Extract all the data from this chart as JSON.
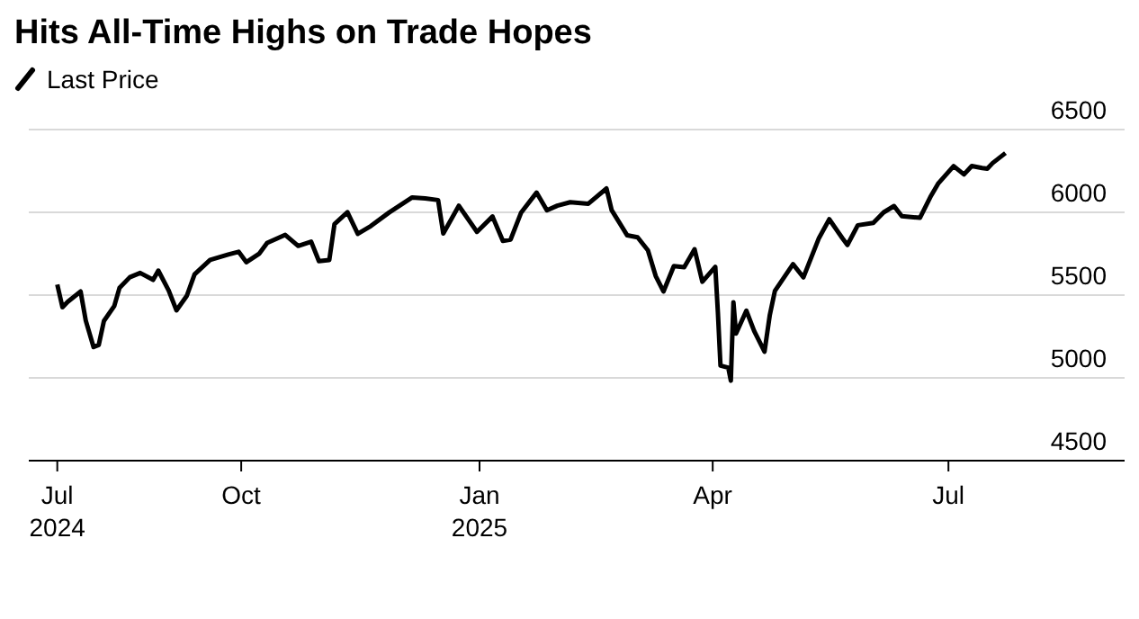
{
  "chart_data": {
    "type": "line",
    "title": "Hits All-Time Highs on Trade Hopes",
    "x": [
      "2024-07-22",
      "2024-07-24",
      "2024-07-26",
      "2024-07-31",
      "2024-08-02",
      "2024-08-05",
      "2024-08-07",
      "2024-08-09",
      "2024-08-13",
      "2024-08-15",
      "2024-08-19",
      "2024-08-23",
      "2024-08-28",
      "2024-08-30",
      "2024-09-03",
      "2024-09-06",
      "2024-09-10",
      "2024-09-13",
      "2024-09-19",
      "2024-09-26",
      "2024-09-30",
      "2024-10-03",
      "2024-10-08",
      "2024-10-11",
      "2024-10-18",
      "2024-10-23",
      "2024-10-28",
      "2024-10-31",
      "2024-11-04",
      "2024-11-06",
      "2024-11-11",
      "2024-11-15",
      "2024-11-20",
      "2024-11-27",
      "2024-12-06",
      "2024-12-11",
      "2024-12-16",
      "2024-12-18",
      "2024-12-24",
      "2024-12-31",
      "2025-01-06",
      "2025-01-10",
      "2025-01-13",
      "2025-01-17",
      "2025-01-23",
      "2025-01-27",
      "2025-01-31",
      "2025-02-05",
      "2025-02-12",
      "2025-02-19",
      "2025-02-21",
      "2025-02-27",
      "2025-03-03",
      "2025-03-07",
      "2025-03-10",
      "2025-03-13",
      "2025-03-17",
      "2025-03-21",
      "2025-03-25",
      "2025-03-28",
      "2025-04-02",
      "2025-04-03",
      "2025-04-04",
      "2025-04-07",
      "2025-04-08",
      "2025-04-09",
      "2025-04-10",
      "2025-04-14",
      "2025-04-17",
      "2025-04-21",
      "2025-04-23",
      "2025-04-25",
      "2025-05-02",
      "2025-05-06",
      "2025-05-12",
      "2025-05-16",
      "2025-05-21",
      "2025-05-23",
      "2025-05-27",
      "2025-06-02",
      "2025-06-06",
      "2025-06-10",
      "2025-06-13",
      "2025-06-20",
      "2025-06-24",
      "2025-06-27",
      "2025-07-03",
      "2025-07-07",
      "2025-07-10",
      "2025-07-14",
      "2025-07-16",
      "2025-07-18",
      "2025-07-23"
    ],
    "series": [
      {
        "name": "Last Price",
        "color": "#000000",
        "values": [
          5564,
          5427,
          5459,
          5522,
          5346,
          5186,
          5199,
          5344,
          5434,
          5543,
          5608,
          5634,
          5592,
          5648,
          5528,
          5408,
          5496,
          5626,
          5713,
          5745,
          5762,
          5699,
          5751,
          5815,
          5864,
          5797,
          5823,
          5705,
          5712,
          5929,
          6001,
          5870,
          5917,
          5998,
          6090,
          6084,
          6074,
          5872,
          6040,
          5882,
          5975,
          5827,
          5836,
          5997,
          6119,
          6012,
          6040,
          6061,
          6052,
          6144,
          6013,
          5861,
          5849,
          5770,
          5615,
          5522,
          5675,
          5668,
          5777,
          5581,
          5671,
          5396,
          5074,
          5062,
          4983,
          5457,
          5268,
          5406,
          5283,
          5158,
          5376,
          5525,
          5687,
          5607,
          5844,
          5958,
          5845,
          5803,
          5922,
          5936,
          6000,
          6038,
          5977,
          5967,
          6092,
          6173,
          6279,
          6229,
          6280,
          6268,
          6264,
          6297,
          6358
        ]
      }
    ],
    "xlim": [
      "2024-07-11",
      "2025-09-07"
    ],
    "xticks": [
      {
        "value": "2024-07-22",
        "label": "Jul\n2024"
      },
      {
        "value": "2024-10-01",
        "label": "Oct"
      },
      {
        "value": "2025-01-01",
        "label": "Jan\n2025"
      },
      {
        "value": "2025-04-01",
        "label": "Apr"
      },
      {
        "value": "2025-07-01",
        "label": "Jul"
      }
    ],
    "ylim": [
      4500,
      6500
    ],
    "yticks": [
      4500,
      5000,
      5500,
      6000,
      6500
    ],
    "grid": "y",
    "legend": "top left",
    "marker": "none",
    "line_style": "solid"
  }
}
